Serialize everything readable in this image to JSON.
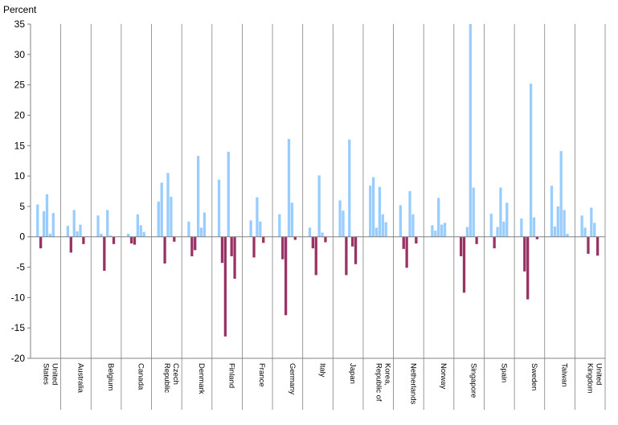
{
  "chart_data": {
    "type": "bar",
    "ylabel": "Percent",
    "ylim": [
      -20,
      35
    ],
    "yticks": [
      35,
      30,
      25,
      20,
      15,
      10,
      5,
      0,
      -5,
      -10,
      -15,
      -20
    ],
    "grid": false,
    "legend": "none",
    "colors": {
      "positive": "#99ccff",
      "negative": "#993366",
      "axis": "#808080",
      "separator": "#808080"
    },
    "categories": [
      {
        "lines": [
          "United",
          "States"
        ],
        "values": [
          5.3,
          -1.9,
          4.2,
          7.0,
          0.5,
          3.9
        ]
      },
      {
        "lines": [
          "Australia"
        ],
        "values": [
          1.8,
          -2.6,
          4.4,
          0.9,
          2.0,
          -1.2
        ]
      },
      {
        "lines": [
          "Belgium"
        ],
        "values": [
          3.5,
          0.5,
          -5.6,
          4.4,
          0.2,
          -1.2
        ]
      },
      {
        "lines": [
          "Canada"
        ],
        "values": [
          0.5,
          -1.1,
          -1.3,
          3.7,
          1.9,
          0.8
        ]
      },
      {
        "lines": [
          "Czech",
          "Republic"
        ],
        "values": [
          5.8,
          8.9,
          -4.4,
          10.5,
          6.6,
          -0.8
        ]
      },
      {
        "lines": [
          "Denmark"
        ],
        "values": [
          2.5,
          -3.2,
          -2.2,
          13.3,
          1.5,
          4.0
        ]
      },
      {
        "lines": [
          "Finland"
        ],
        "values": [
          9.4,
          -4.3,
          -16.4,
          14.0,
          -3.2,
          -6.9
        ]
      },
      {
        "lines": [
          "France"
        ],
        "values": [
          2.7,
          -3.4,
          6.5,
          2.5,
          -1.0
        ]
      },
      {
        "lines": [
          "Germany"
        ],
        "values": [
          3.7,
          -3.7,
          -12.9,
          16.1,
          5.6,
          -0.5
        ]
      },
      {
        "lines": [
          "Italy"
        ],
        "values": [
          1.5,
          -1.9,
          -6.3,
          10.1,
          0.7,
          -0.9
        ]
      },
      {
        "lines": [
          "Japan"
        ],
        "values": [
          6.0,
          4.3,
          -6.3,
          16.0,
          -1.6,
          -4.5
        ]
      },
      {
        "lines": [
          "Korea,",
          "Republic of"
        ],
        "values": [
          8.4,
          9.8,
          1.5,
          8.2,
          3.7,
          2.4
        ]
      },
      {
        "lines": [
          "Netherlands"
        ],
        "values": [
          5.2,
          -2.0,
          -5.1,
          7.5,
          3.7,
          -1.1
        ]
      },
      {
        "lines": [
          "Norway"
        ],
        "values": [
          1.9,
          1.0,
          6.4,
          2.0,
          2.3
        ]
      },
      {
        "lines": [
          "Singapore"
        ],
        "values": [
          -3.2,
          -9.2,
          1.6,
          35.0,
          8.1,
          -1.2
        ]
      },
      {
        "lines": [
          "Spain"
        ],
        "values": [
          3.8,
          -1.9,
          1.6,
          8.1,
          2.5,
          5.6
        ]
      },
      {
        "lines": [
          "Sweden"
        ],
        "values": [
          3.0,
          -5.7,
          -10.3,
          25.2,
          3.2,
          -0.4
        ]
      },
      {
        "lines": [
          "Taiwan"
        ],
        "values": [
          8.4,
          1.7,
          5.0,
          14.1,
          4.4,
          0.5
        ]
      },
      {
        "lines": [
          "United",
          "Kingdom"
        ],
        "values": [
          3.5,
          1.5,
          -2.8,
          4.8,
          2.3,
          -3.1
        ]
      }
    ]
  }
}
